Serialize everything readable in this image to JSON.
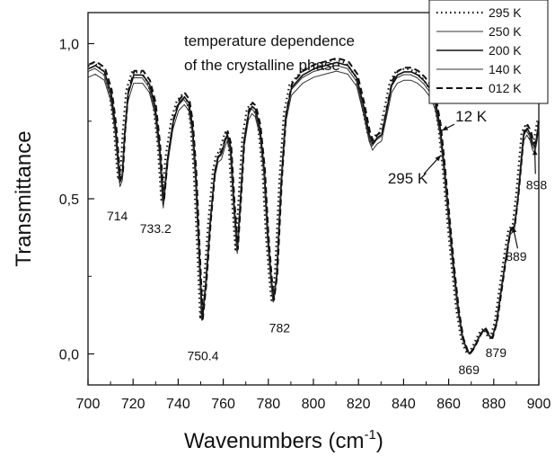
{
  "chart_data": {
    "type": "line",
    "title": "",
    "xlabel": "Wavenumbers (cm",
    "xlabel_sup": "-1",
    "xlabel_close": ")",
    "ylabel": "Transmittance",
    "xlim": [
      700,
      900
    ],
    "ylim": [
      -0.1,
      1.1
    ],
    "x_ticks": [
      "700",
      "720",
      "740",
      "760",
      "780",
      "800",
      "820",
      "840",
      "860",
      "880",
      "900"
    ],
    "y_ticks": [
      "0,0",
      "0,5",
      "1,0"
    ],
    "y_tick_values": [
      0,
      0.5,
      1.0
    ],
    "grid": false,
    "legend_position": "top-right",
    "inset_text": [
      "temperature dependence",
      "of the crystalline phase"
    ],
    "peak_labels": [
      {
        "text": "714",
        "x": 714,
        "y": 0.55
      },
      {
        "text": "733.2",
        "x": 733.2,
        "y": 0.48
      },
      {
        "text": "750.4",
        "x": 750.4,
        "y": 0.11
      },
      {
        "text": "782",
        "x": 782,
        "y": 0.17
      },
      {
        "text": "869",
        "x": 869,
        "y": 0.0
      },
      {
        "text": "879",
        "x": 879,
        "y": 0.05
      },
      {
        "text": "889",
        "x": 889,
        "y": 0.41
      },
      {
        "text": "898",
        "x": 898,
        "y": 0.66
      }
    ],
    "temp_labels": [
      {
        "text": "12 K",
        "x": 858,
        "y": 0.74
      },
      {
        "text": "295 K",
        "x": 860,
        "y": 0.62
      }
    ],
    "series": [
      {
        "name": "295 K",
        "style": "dotted",
        "offset": 0.02,
        "shift": -0.6
      },
      {
        "name": "250 K",
        "style": "thin",
        "offset": 0.0,
        "shift": 0.0
      },
      {
        "name": "200 K",
        "style": "solid",
        "offset": 0.01,
        "shift": 0.3
      },
      {
        "name": "140 K",
        "style": "thin",
        "offset": -0.02,
        "shift": 0.2
      },
      {
        "name": "012 K",
        "style": "dashed",
        "offset": 0.025,
        "shift": 0.5
      }
    ],
    "base_curve": [
      [
        700,
        0.91
      ],
      [
        703,
        0.92
      ],
      [
        707,
        0.9
      ],
      [
        710,
        0.83
      ],
      [
        712,
        0.72
      ],
      [
        713.3,
        0.6
      ],
      [
        714,
        0.55
      ],
      [
        715,
        0.57
      ],
      [
        716,
        0.7
      ],
      [
        717.5,
        0.83
      ],
      [
        720,
        0.89
      ],
      [
        724,
        0.89
      ],
      [
        727,
        0.86
      ],
      [
        729.5,
        0.79
      ],
      [
        731.5,
        0.66
      ],
      [
        733.2,
        0.48
      ],
      [
        735,
        0.62
      ],
      [
        737.5,
        0.74
      ],
      [
        740,
        0.8
      ],
      [
        742.5,
        0.82
      ],
      [
        744.5,
        0.8
      ],
      [
        746,
        0.73
      ],
      [
        747.5,
        0.58
      ],
      [
        749,
        0.34
      ],
      [
        750.4,
        0.11
      ],
      [
        752,
        0.22
      ],
      [
        754,
        0.42
      ],
      [
        756,
        0.58
      ],
      [
        757.5,
        0.63
      ],
      [
        759,
        0.64
      ],
      [
        760.5,
        0.68
      ],
      [
        761.5,
        0.7
      ],
      [
        763,
        0.66
      ],
      [
        764.5,
        0.48
      ],
      [
        766,
        0.33
      ],
      [
        767.5,
        0.5
      ],
      [
        769,
        0.68
      ],
      [
        771,
        0.77
      ],
      [
        772.5,
        0.79
      ],
      [
        774,
        0.78
      ],
      [
        776,
        0.72
      ],
      [
        778,
        0.58
      ],
      [
        779.5,
        0.38
      ],
      [
        781,
        0.24
      ],
      [
        782,
        0.17
      ],
      [
        783.5,
        0.25
      ],
      [
        785.5,
        0.55
      ],
      [
        787.5,
        0.76
      ],
      [
        790,
        0.85
      ],
      [
        795,
        0.89
      ],
      [
        800,
        0.91
      ],
      [
        805,
        0.92
      ],
      [
        810,
        0.93
      ],
      [
        815,
        0.92
      ],
      [
        819,
        0.88
      ],
      [
        822,
        0.79
      ],
      [
        824.5,
        0.7
      ],
      [
        826,
        0.67
      ],
      [
        828,
        0.69
      ],
      [
        830,
        0.7
      ],
      [
        832,
        0.77
      ],
      [
        834.5,
        0.86
      ],
      [
        837,
        0.89
      ],
      [
        840,
        0.9
      ],
      [
        843,
        0.9
      ],
      [
        846,
        0.89
      ],
      [
        849,
        0.87
      ],
      [
        852,
        0.84
      ],
      [
        854,
        0.8
      ],
      [
        856,
        0.72
      ],
      [
        858,
        0.58
      ],
      [
        860,
        0.42
      ],
      [
        862,
        0.27
      ],
      [
        864,
        0.14
      ],
      [
        866,
        0.05
      ],
      [
        868,
        0.01
      ],
      [
        869,
        0.0
      ],
      [
        871,
        0.02
      ],
      [
        873,
        0.05
      ],
      [
        874.5,
        0.07
      ],
      [
        876,
        0.08
      ],
      [
        877.5,
        0.06
      ],
      [
        879,
        0.05
      ],
      [
        881,
        0.1
      ],
      [
        883,
        0.2
      ],
      [
        885,
        0.3
      ],
      [
        887,
        0.39
      ],
      [
        889,
        0.41
      ],
      [
        890.5,
        0.5
      ],
      [
        892,
        0.62
      ],
      [
        893,
        0.7
      ],
      [
        894.5,
        0.72
      ],
      [
        896,
        0.7
      ],
      [
        897,
        0.67
      ],
      [
        898,
        0.66
      ],
      [
        899,
        0.7
      ],
      [
        900,
        0.74
      ]
    ]
  },
  "legend": {
    "items": [
      "295 K",
      "250 K",
      "200 K",
      "140 K",
      "012 K"
    ]
  }
}
